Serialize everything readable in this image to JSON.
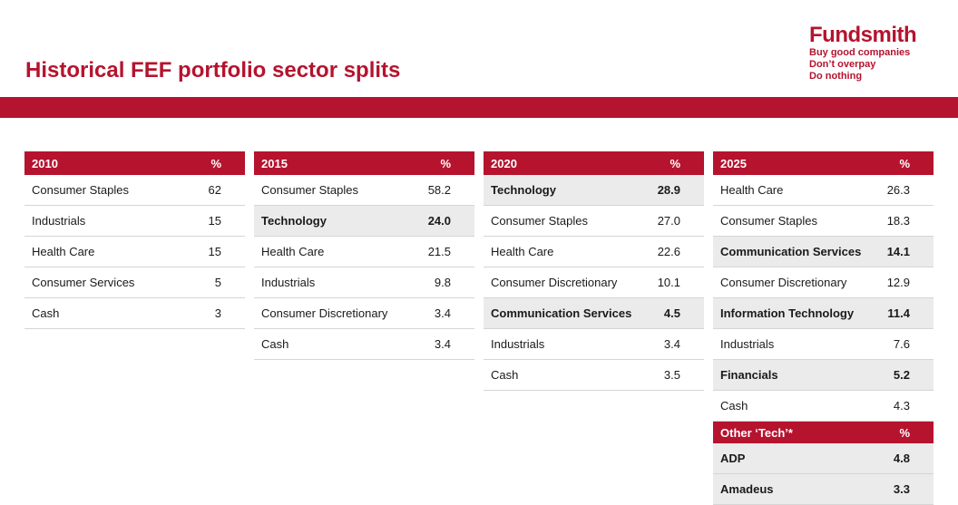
{
  "header": {
    "title": "Historical FEF portfolio sector splits",
    "brand": "Fundsmith",
    "tagline": [
      "Buy good companies",
      "Don’t overpay",
      "Do nothing"
    ]
  },
  "tables": [
    {
      "year": "2010",
      "pct_label": "%",
      "rows": [
        {
          "sector": "Consumer Staples",
          "pct": "62",
          "hl": false
        },
        {
          "sector": "Industrials",
          "pct": "15",
          "hl": false
        },
        {
          "sector": "Health Care",
          "pct": "15",
          "hl": false
        },
        {
          "sector": "Consumer Services",
          "pct": "5",
          "hl": false
        },
        {
          "sector": "Cash",
          "pct": "3",
          "hl": false
        }
      ]
    },
    {
      "year": "2015",
      "pct_label": "%",
      "rows": [
        {
          "sector": "Consumer Staples",
          "pct": "58.2",
          "hl": false
        },
        {
          "sector": "Technology",
          "pct": "24.0",
          "hl": true
        },
        {
          "sector": "Health Care",
          "pct": "21.5",
          "hl": false
        },
        {
          "sector": "Industrials",
          "pct": "9.8",
          "hl": false
        },
        {
          "sector": "Consumer Discretionary",
          "pct": "3.4",
          "hl": false
        },
        {
          "sector": "Cash",
          "pct": "3.4",
          "hl": false
        }
      ]
    },
    {
      "year": "2020",
      "pct_label": "%",
      "rows": [
        {
          "sector": "Technology",
          "pct": "28.9",
          "hl": true
        },
        {
          "sector": "Consumer Staples",
          "pct": "27.0",
          "hl": false
        },
        {
          "sector": "Health Care",
          "pct": "22.6",
          "hl": false
        },
        {
          "sector": "Consumer Discretionary",
          "pct": "10.1",
          "hl": false
        },
        {
          "sector": "Communication Services",
          "pct": "4.5",
          "hl": true
        },
        {
          "sector": "Industrials",
          "pct": "3.4",
          "hl": false
        },
        {
          "sector": "Cash",
          "pct": "3.5",
          "hl": false
        }
      ]
    },
    {
      "year": "2025",
      "pct_label": "%",
      "rows": [
        {
          "sector": "Health Care",
          "pct": "26.3",
          "hl": false
        },
        {
          "sector": "Consumer Staples",
          "pct": "18.3",
          "hl": false
        },
        {
          "sector": "Communication Services",
          "pct": "14.1",
          "hl": true
        },
        {
          "sector": "Consumer Discretionary",
          "pct": "12.9",
          "hl": false
        },
        {
          "sector": "Information Technology",
          "pct": "11.4",
          "hl": true
        },
        {
          "sector": "Industrials",
          "pct": "7.6",
          "hl": false
        },
        {
          "sector": "Financials",
          "pct": "5.2",
          "hl": true
        },
        {
          "sector": "Cash",
          "pct": "4.3",
          "hl": false
        }
      ],
      "other_tech": {
        "label": "Other ‘Tech’*",
        "pct_label": "%",
        "rows": [
          {
            "sector": "ADP",
            "pct": "4.8",
            "hl": true
          },
          {
            "sector": "Amadeus",
            "pct": "3.3",
            "hl": true
          }
        ]
      }
    }
  ],
  "colors": {
    "accent": "#b5132e",
    "highlight_row": "#ebebeb"
  }
}
